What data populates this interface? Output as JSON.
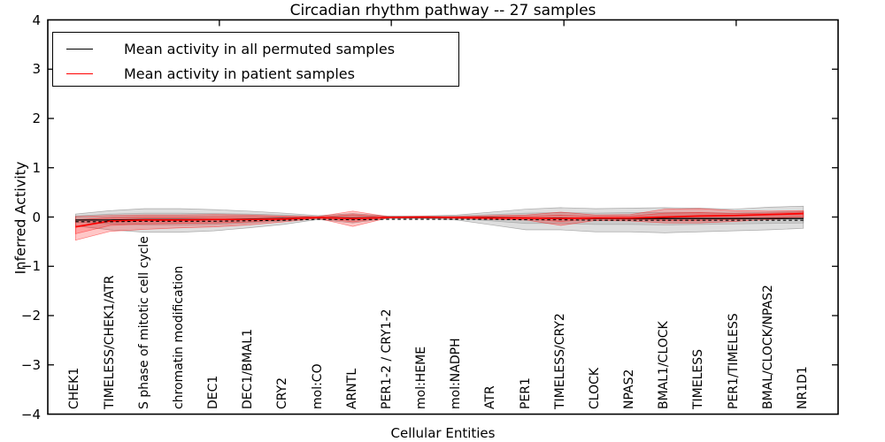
{
  "title": "Circadian rhythm pathway -- 27 samples",
  "xlabel": "Cellular Entities",
  "ylabel": "Inferred Activity",
  "legend": [
    {
      "label": "Mean activity in all permuted samples",
      "color": "#000000"
    },
    {
      "label": "Mean activity in patient samples",
      "color": "#ff0000"
    }
  ],
  "colors": {
    "permuted_line": "#000000",
    "patient_line": "#ff0000",
    "permuted_band": "#999999",
    "patient_band": "#ff0000",
    "frame": "#000000",
    "background": "#ffffff"
  },
  "chart_data": {
    "type": "line",
    "title": "Circadian rhythm pathway -- 27 samples",
    "xlabel": "Cellular Entities",
    "ylabel": "Inferred Activity",
    "ylim": [
      -4,
      4
    ],
    "yticks": [
      -4,
      -3,
      -2,
      -1,
      0,
      1,
      2,
      3,
      4
    ],
    "grid": false,
    "legend_position": "upper left",
    "top_ticks_x": [
      4.15,
      9.11,
      14.09,
      19.06
    ],
    "categories": [
      "CHEK1",
      "TIMELESS/CHEK1/ATR",
      "S phase of mitotic cell cycle",
      "chromatin modification",
      "DEC1",
      "DEC1/BMAL1",
      "CRY2",
      "mol:CO",
      "ARNTL",
      "PER1-2 / CRY1-2",
      "mol:HEME",
      "mol:NADPH",
      "ATR",
      "PER1",
      "TIMELESS/CRY2",
      "CLOCK",
      "NPAS2",
      "BMAL1/CLOCK",
      "TIMELESS",
      "PER1/TIMELESS",
      "BMAL/CLOCK/NPAS2",
      "NR1D1"
    ],
    "series": [
      {
        "name": "Mean activity in all permuted samples",
        "color": "#000000",
        "values": [
          -0.06,
          -0.06,
          -0.05,
          -0.05,
          -0.05,
          -0.04,
          -0.03,
          -0.01,
          -0.02,
          -0.01,
          -0.01,
          -0.01,
          -0.01,
          -0.02,
          -0.02,
          -0.03,
          -0.03,
          -0.03,
          -0.03,
          -0.03,
          -0.03,
          -0.03
        ]
      },
      {
        "name": "Mean activity in patient samples",
        "color": "#ff0000",
        "values": [
          -0.2,
          -0.08,
          -0.06,
          -0.06,
          -0.05,
          -0.05,
          -0.04,
          -0.01,
          -0.03,
          -0.01,
          0.0,
          -0.01,
          -0.02,
          -0.02,
          -0.03,
          -0.02,
          -0.02,
          0.0,
          0.02,
          0.03,
          0.05,
          0.07
        ]
      }
    ],
    "bands": [
      {
        "name": "permuted-spread-outer",
        "color": "#000000",
        "opacity": 0.13,
        "upper": [
          0.06,
          0.13,
          0.17,
          0.17,
          0.15,
          0.12,
          0.08,
          0.03,
          0.07,
          0.02,
          0.02,
          0.04,
          0.1,
          0.16,
          0.19,
          0.17,
          0.18,
          0.19,
          0.18,
          0.16,
          0.2,
          0.22
        ],
        "lower": [
          -0.18,
          -0.26,
          -0.31,
          -0.31,
          -0.28,
          -0.22,
          -0.15,
          -0.05,
          -0.12,
          -0.03,
          -0.03,
          -0.06,
          -0.16,
          -0.26,
          -0.26,
          -0.3,
          -0.3,
          -0.32,
          -0.3,
          -0.28,
          -0.26,
          -0.23
        ]
      },
      {
        "name": "permuted-spread-inner",
        "color": "#000000",
        "opacity": 0.09,
        "upper": [
          0.02,
          0.06,
          0.08,
          0.08,
          0.07,
          0.06,
          0.04,
          0.01,
          0.03,
          0.01,
          0.01,
          0.02,
          0.05,
          0.08,
          0.09,
          0.08,
          0.09,
          0.09,
          0.09,
          0.08,
          0.1,
          0.11
        ],
        "lower": [
          -0.1,
          -0.14,
          -0.16,
          -0.16,
          -0.15,
          -0.12,
          -0.08,
          -0.03,
          -0.06,
          -0.02,
          -0.02,
          -0.03,
          -0.08,
          -0.13,
          -0.13,
          -0.15,
          -0.15,
          -0.16,
          -0.15,
          -0.14,
          -0.13,
          -0.12
        ]
      },
      {
        "name": "patient-spread-outer",
        "color": "#ff0000",
        "opacity": 0.22,
        "upper": [
          0.01,
          0.03,
          0.04,
          0.04,
          0.05,
          0.04,
          0.02,
          0.01,
          0.12,
          0.01,
          0.01,
          0.01,
          0.03,
          0.04,
          0.1,
          0.04,
          0.05,
          0.16,
          0.17,
          0.13,
          0.12,
          0.13
        ],
        "lower": [
          -0.47,
          -0.29,
          -0.25,
          -0.22,
          -0.2,
          -0.16,
          -0.1,
          -0.03,
          -0.19,
          -0.02,
          -0.02,
          -0.03,
          -0.05,
          -0.06,
          -0.17,
          -0.07,
          -0.08,
          -0.12,
          -0.12,
          -0.09,
          -0.05,
          -0.02
        ]
      },
      {
        "name": "patient-spread-inner",
        "color": "#ff0000",
        "opacity": 0.2,
        "upper": [
          -0.06,
          -0.01,
          0.0,
          0.0,
          0.01,
          0.01,
          0.0,
          0.0,
          0.05,
          0.0,
          0.0,
          0.0,
          0.01,
          0.01,
          0.04,
          0.01,
          0.02,
          0.08,
          0.09,
          0.07,
          0.08,
          0.1
        ],
        "lower": [
          -0.34,
          -0.17,
          -0.14,
          -0.13,
          -0.12,
          -0.1,
          -0.06,
          -0.02,
          -0.1,
          -0.01,
          -0.01,
          -0.02,
          -0.03,
          -0.04,
          -0.09,
          -0.04,
          -0.05,
          -0.07,
          -0.07,
          -0.05,
          -0.02,
          0.0
        ]
      }
    ]
  }
}
